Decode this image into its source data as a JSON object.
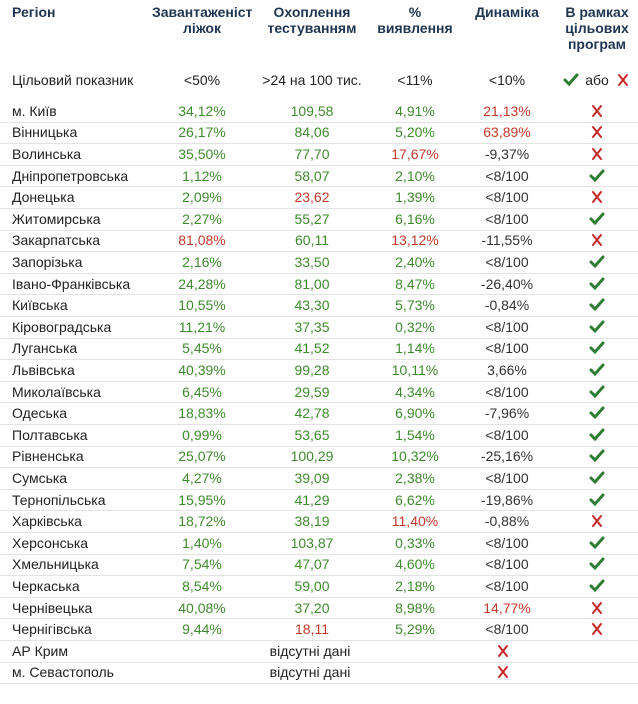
{
  "header": {
    "columns": [
      "Регіон",
      "Завантаженість ліжок",
      "Охоплення тестуванням",
      "% виявлення",
      "Динаміка",
      "В рамках цільових програм"
    ]
  },
  "target": {
    "label": "Цільовий показник",
    "cells": [
      "<50%",
      ">24 на 100 тис.",
      "<11%",
      "<10%"
    ],
    "or": "або"
  },
  "table": {
    "rows": [
      {
        "region": "м. Київ",
        "cells": [
          "34,12%",
          "109,58",
          "4,91%",
          "21,13%"
        ],
        "colors": [
          "green",
          "green",
          "green",
          "red"
        ],
        "ok": false
      },
      {
        "region": "Вінницька",
        "cells": [
          "26,17%",
          "84,06",
          "5,20%",
          "63,89%"
        ],
        "colors": [
          "green",
          "green",
          "green",
          "red"
        ],
        "ok": false
      },
      {
        "region": "Волинська",
        "cells": [
          "35,50%",
          "77,70",
          "17,67%",
          "-9,37%"
        ],
        "colors": [
          "green",
          "green",
          "red",
          "dark"
        ],
        "ok": false
      },
      {
        "region": "Дніпропетровська",
        "cells": [
          "1,12%",
          "58,07",
          "2,10%",
          "<8/100"
        ],
        "colors": [
          "green",
          "green",
          "green",
          "dark"
        ],
        "ok": true
      },
      {
        "region": "Донецька",
        "cells": [
          "2,09%",
          "23,62",
          "1,39%",
          "<8/100"
        ],
        "colors": [
          "green",
          "red",
          "green",
          "dark"
        ],
        "ok": false
      },
      {
        "region": "Житомирська",
        "cells": [
          "2,27%",
          "55,27",
          "6,16%",
          "<8/100"
        ],
        "colors": [
          "green",
          "green",
          "green",
          "dark"
        ],
        "ok": true
      },
      {
        "region": "Закарпатська",
        "cells": [
          "81,08%",
          "60,11",
          "13,12%",
          "-11,55%"
        ],
        "colors": [
          "red",
          "green",
          "red",
          "dark"
        ],
        "ok": false
      },
      {
        "region": "Запорізька",
        "cells": [
          "2,16%",
          "33,50",
          "2,40%",
          "<8/100"
        ],
        "colors": [
          "green",
          "green",
          "green",
          "dark"
        ],
        "ok": true
      },
      {
        "region": "Івано-Франківська",
        "cells": [
          "24,28%",
          "81,00",
          "8,47%",
          "-26,40%"
        ],
        "colors": [
          "green",
          "green",
          "green",
          "dark"
        ],
        "ok": true
      },
      {
        "region": "Київська",
        "cells": [
          "10,55%",
          "43,30",
          "5,73%",
          "-0,84%"
        ],
        "colors": [
          "green",
          "green",
          "green",
          "dark"
        ],
        "ok": true
      },
      {
        "region": "Кіровоградська",
        "cells": [
          "11,21%",
          "37,35",
          "0,32%",
          "<8/100"
        ],
        "colors": [
          "green",
          "green",
          "green",
          "dark"
        ],
        "ok": true
      },
      {
        "region": "Луганська",
        "cells": [
          "5,45%",
          "41,52",
          "1,14%",
          "<8/100"
        ],
        "colors": [
          "green",
          "green",
          "green",
          "dark"
        ],
        "ok": true
      },
      {
        "region": "Львівська",
        "cells": [
          "40,39%",
          "99,28",
          "10,11%",
          "3,66%"
        ],
        "colors": [
          "green",
          "green",
          "green",
          "dark"
        ],
        "ok": true
      },
      {
        "region": "Миколаївська",
        "cells": [
          "6,45%",
          "29,59",
          "4,34%",
          "<8/100"
        ],
        "colors": [
          "green",
          "green",
          "green",
          "dark"
        ],
        "ok": true
      },
      {
        "region": "Одеська",
        "cells": [
          "18,83%",
          "42,78",
          "6,90%",
          "-7,96%"
        ],
        "colors": [
          "green",
          "green",
          "green",
          "dark"
        ],
        "ok": true
      },
      {
        "region": "Полтавська",
        "cells": [
          "0,99%",
          "53,65",
          "1,54%",
          "<8/100"
        ],
        "colors": [
          "green",
          "green",
          "green",
          "dark"
        ],
        "ok": true
      },
      {
        "region": "Рівненська",
        "cells": [
          "25,07%",
          "100,29",
          "10,32%",
          "-25,16%"
        ],
        "colors": [
          "green",
          "green",
          "green",
          "dark"
        ],
        "ok": true
      },
      {
        "region": "Сумська",
        "cells": [
          "4,27%",
          "39,09",
          "2,38%",
          "<8/100"
        ],
        "colors": [
          "green",
          "green",
          "green",
          "dark"
        ],
        "ok": true
      },
      {
        "region": "Тернопільська",
        "cells": [
          "15,95%",
          "41,29",
          "6,62%",
          "-19,86%"
        ],
        "colors": [
          "green",
          "green",
          "green",
          "dark"
        ],
        "ok": true
      },
      {
        "region": "Харківська",
        "cells": [
          "18,72%",
          "38,19",
          "11,40%",
          "-0,88%"
        ],
        "colors": [
          "green",
          "green",
          "red",
          "dark"
        ],
        "ok": false
      },
      {
        "region": "Херсонська",
        "cells": [
          "1,40%",
          "103,87",
          "0,33%",
          "<8/100"
        ],
        "colors": [
          "green",
          "green",
          "green",
          "dark"
        ],
        "ok": true
      },
      {
        "region": "Хмельницька",
        "cells": [
          "7,54%",
          "47,07",
          "4,60%",
          "<8/100"
        ],
        "colors": [
          "green",
          "green",
          "green",
          "dark"
        ],
        "ok": true
      },
      {
        "region": "Черкаська",
        "cells": [
          "8,54%",
          "59,00",
          "2,18%",
          "<8/100"
        ],
        "colors": [
          "green",
          "green",
          "green",
          "dark"
        ],
        "ok": true
      },
      {
        "region": "Чернівецька",
        "cells": [
          "40,08%",
          "37,20",
          "8,98%",
          "14,77%"
        ],
        "colors": [
          "green",
          "green",
          "green",
          "red"
        ],
        "ok": false
      },
      {
        "region": "Чернігівська",
        "cells": [
          "9,44%",
          "18,11",
          "5,29%",
          "<8/100"
        ],
        "colors": [
          "green",
          "red",
          "green",
          "dark"
        ],
        "ok": false
      },
      {
        "region": "АР Крим",
        "note": "відсутні дані",
        "ok": false
      },
      {
        "region": "м. Севастополь",
        "note": "відсутні дані",
        "ok": false
      }
    ]
  }
}
